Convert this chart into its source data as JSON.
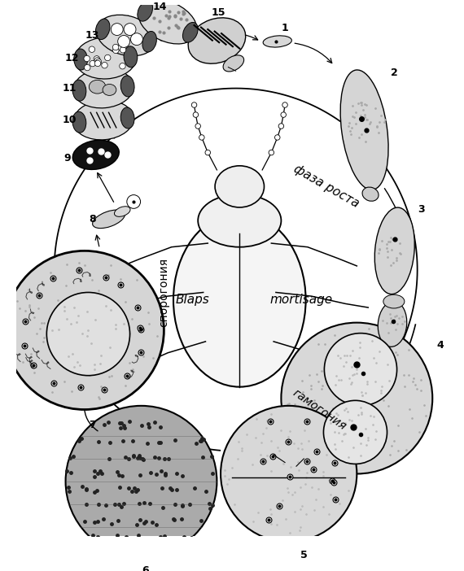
{
  "background_color": "#ffffff",
  "fig_width": 5.7,
  "fig_height": 7.02,
  "dpi": 100,
  "blaps_label": "Blaps",
  "mortisaga_label": "mortisage",
  "faza_rosta_label": "фаза роста",
  "sporogonia_label": "спорогония",
  "gamogonia_label": "гамогония"
}
